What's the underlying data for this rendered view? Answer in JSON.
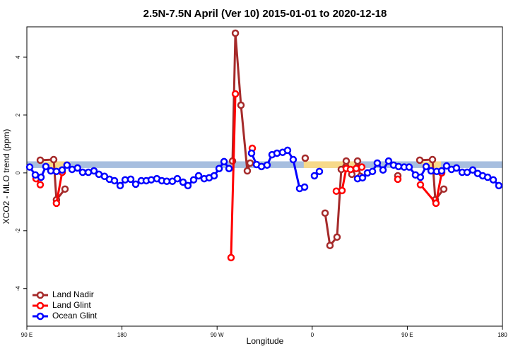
{
  "chart_data": {
    "type": "line",
    "title": "2.5N-7.5N April (Ver 10)   2015-01-01 to 2020-12-18",
    "xlabel": "Longitude",
    "ylabel": "XCO2 - MLO trend (ppm)",
    "xlim": [
      90,
      540
    ],
    "ylim": [
      -5.3,
      5.05
    ],
    "xticks": [
      {
        "value": 90,
        "label": "90 E"
      },
      180,
      {
        "value": 270,
        "label": "90 W"
      },
      {
        "value": 360,
        "label": "0"
      },
      {
        "value": 450,
        "label": "90 E"
      },
      {
        "value": 540,
        "label": "180"
      }
    ],
    "yticks": [
      -4,
      -2,
      0,
      2,
      4
    ],
    "legend": "bottom-left",
    "band": {
      "ymin": 0.17,
      "ymax": 0.4,
      "color": "#a7bedf"
    },
    "highlight": {
      "color": "#f7d98a",
      "ranges": [
        [
          106,
          131
        ],
        [
          352,
          402
        ],
        [
          464,
          482
        ]
      ]
    },
    "series": [
      {
        "name": "Land Nadir",
        "color": "#a52a2a",
        "x": [
          102.7,
          115.4,
          118,
          126.1,
          null,
          284.6,
          287.3,
          292.6,
          298.6,
          301.3,
          null,
          353.4,
          null,
          372.2,
          376.8,
          383.5,
          387.5,
          392.2,
          397.5,
          402.9,
          405.6,
          null,
          441,
          null,
          461.8,
          473.8,
          476.5,
          484.5
        ],
        "values": [
          0.44,
          0.46,
          -0.93,
          -0.56,
          null,
          0.41,
          4.83,
          2.34,
          0.07,
          0.34,
          null,
          0.51,
          null,
          -1.39,
          -2.51,
          -2.22,
          0.12,
          0.41,
          -0.05,
          0.41,
          -0.12,
          null,
          -0.1,
          null,
          0.44,
          0.46,
          -0.93,
          -0.56
        ]
      },
      {
        "name": "Land Glint",
        "color": "#ff0000",
        "x": [
          98.7,
          102.7,
          null,
          118,
          123.4,
          null,
          283.2,
          287.3,
          null,
          303.3,
          null,
          382.8,
          388.2,
          392.2,
          396.2,
          401.6,
          406.9,
          null,
          441,
          null,
          462.4,
          477.1,
          482.5
        ],
        "values": [
          -0.2,
          -0.41,
          null,
          -1.05,
          0.02,
          null,
          -2.93,
          2.73,
          null,
          0.85,
          null,
          -0.63,
          -0.61,
          0.15,
          0.12,
          0.15,
          0.2,
          null,
          -0.22,
          null,
          -0.41,
          -1.05,
          0
        ]
      },
      {
        "name": "Ocean Glint",
        "color": "#0000ff",
        "x": [
          92.7,
          98,
          103.4,
          108,
          112.7,
          118,
          123.4,
          128,
          132.8,
          138,
          142.8,
          148.2,
          153.5,
          158.2,
          163.5,
          168.2,
          172.9,
          178.3,
          183,
          188.3,
          193,
          198.3,
          203,
          207.7,
          213,
          217.7,
          222.4,
          227.7,
          232.4,
          237.8,
          242.4,
          247.8,
          252.5,
          257.8,
          262.5,
          267.2,
          271.9,
          276.6,
          281.3,
          null,
          302.6,
          307.3,
          312,
          317.3,
          322,
          326.7,
          332,
          336.7,
          342,
          348.1,
          352.8,
          null,
          362.1,
          366.8,
          null,
          402.9,
          407.6,
          412.3,
          417,
          421.6,
          427,
          432.3,
          437,
          441.7,
          447,
          451.7,
          457.7,
          462.4,
          467.8,
          472.5,
          477.8,
          482.5,
          487.2,
          491.8,
          496.5,
          501.9,
          506.6,
          511.9,
          516.6,
          521.3,
          526,
          531.3,
          536.6
        ],
        "values": [
          0.2,
          -0.07,
          -0.15,
          0.22,
          0.07,
          0.05,
          0.1,
          0.27,
          0.12,
          0.17,
          0.02,
          0.02,
          0.07,
          -0.05,
          -0.12,
          -0.22,
          -0.27,
          -0.44,
          -0.24,
          -0.22,
          -0.39,
          -0.27,
          -0.27,
          -0.24,
          -0.2,
          -0.27,
          -0.29,
          -0.29,
          -0.2,
          -0.32,
          -0.44,
          -0.24,
          -0.1,
          -0.2,
          -0.17,
          -0.1,
          0.15,
          0.39,
          0.15,
          null,
          0.68,
          0.29,
          0.22,
          0.27,
          0.63,
          0.68,
          0.71,
          0.78,
          0.46,
          -0.54,
          -0.49,
          null,
          -0.1,
          0.05,
          null,
          -0.2,
          -0.17,
          0,
          0.05,
          0.34,
          0.1,
          0.41,
          0.27,
          0.22,
          0.2,
          0.2,
          -0.07,
          -0.15,
          0.22,
          0.07,
          0.05,
          0.07,
          0.24,
          0.12,
          0.17,
          0.02,
          0.02,
          0.1,
          -0.02,
          -0.1,
          -0.15,
          -0.24,
          -0.44
        ]
      }
    ]
  }
}
